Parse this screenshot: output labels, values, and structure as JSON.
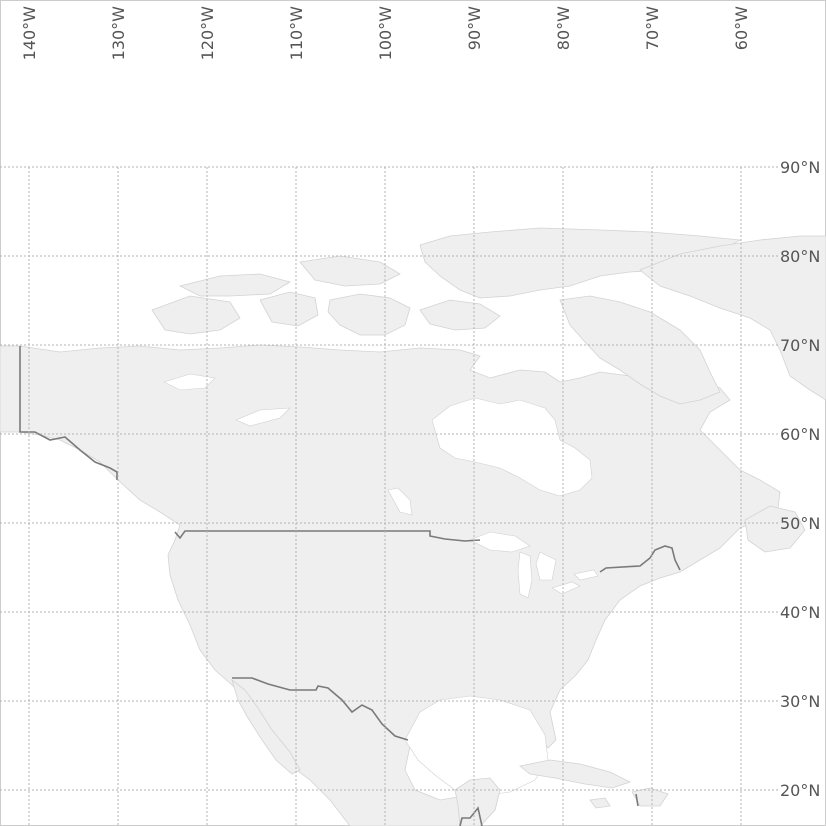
{
  "map": {
    "longitude_labels": [
      "140°W",
      "130°W",
      "120°W",
      "110°W",
      "100°W",
      "90°W",
      "80°W",
      "70°W",
      "60°W"
    ],
    "latitude_labels": [
      "90°N",
      "80°N",
      "70°N",
      "60°N",
      "50°N",
      "40°N",
      "30°N",
      "20°N"
    ],
    "colors": {
      "land": "#efefef",
      "coast": "#d3d3d3",
      "border": "#7a7a7a",
      "grid": "#b3b3b3",
      "label": "#555555",
      "background": "#ffffff"
    }
  }
}
